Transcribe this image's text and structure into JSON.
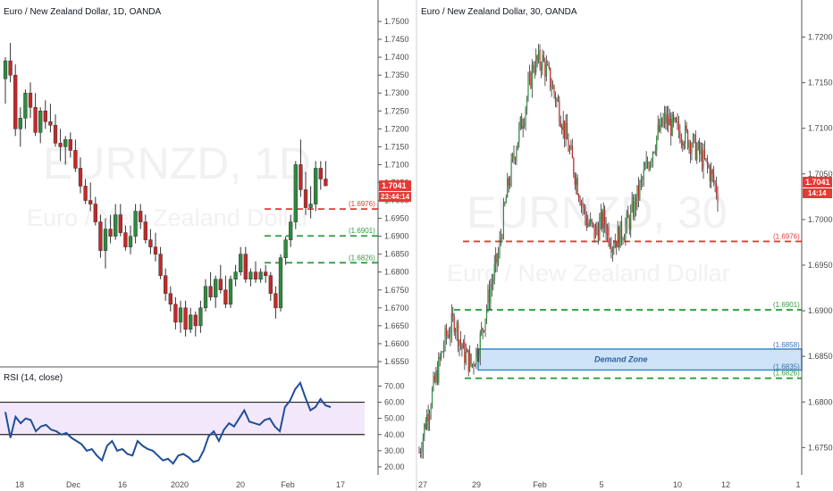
{
  "left_panel": {
    "title": "Euro / New Zealand Dollar, 1D, OANDA",
    "watermark_symbol": "EURNZD, 1D",
    "watermark_name": "Euro / New Zealand Dollar",
    "price_ticks": [
      "1.7500",
      "1.7450",
      "1.7400",
      "1.7350",
      "1.7300",
      "1.7250",
      "1.7200",
      "1.7150",
      "1.7100",
      "1.7050",
      "1.7000",
      "1.6950",
      "1.6900",
      "1.6850",
      "1.6800",
      "1.6750",
      "1.6700",
      "1.6650",
      "1.6600",
      "1.6550"
    ],
    "x_ticks": [
      "18",
      "Dec",
      "16",
      "2020",
      "20",
      "Feb",
      "17"
    ],
    "last_price": "1.7041",
    "countdown": "23:44:14",
    "levels": [
      {
        "label": "(1.6976)",
        "value": 1.6976,
        "color": "#e53935"
      },
      {
        "label": "(1.6901)",
        "value": 1.6901,
        "color": "#2e9e3e"
      },
      {
        "label": "(1.6826)",
        "value": 1.6826,
        "color": "#2e9e3e"
      }
    ],
    "rsi": {
      "label": "RSI (14, close)",
      "ticks": [
        "70.00",
        "60.00",
        "50.00",
        "40.00",
        "30.00",
        "20.00"
      ],
      "upper_band": 60,
      "lower_band": 40
    }
  },
  "right_panel": {
    "title": "Euro / New Zealand Dollar, 30, OANDA",
    "watermark_symbol": "EURNZD, 30",
    "watermark_name": "Euro / New Zealand Dollar",
    "price_ticks": [
      "1.7200",
      "1.7150",
      "1.7100",
      "1.7050",
      "1.7000",
      "1.6950",
      "1.6900",
      "1.6850",
      "1.6800",
      "1.6750"
    ],
    "x_ticks": [
      "27",
      "29",
      "Feb",
      "5",
      "10",
      "12",
      "1"
    ],
    "last_price": "1.7041",
    "countdown": "14:14",
    "levels": [
      {
        "label": "(1.6976)",
        "value": 1.6976,
        "color": "#e53935"
      },
      {
        "label": "(1.6901)",
        "value": 1.6901,
        "color": "#2e9e3e"
      },
      {
        "label": "(1.6826)",
        "value": 1.6826,
        "color": "#2e9e3e"
      }
    ],
    "demand_zone": {
      "label": "Demand Zone",
      "top_label": "(1.6858)",
      "bottom_label": "(1.6835)",
      "top": 1.6858,
      "bottom": 1.6835
    }
  },
  "colors": {
    "up": "#2e8b3e",
    "down": "#c62828",
    "rsi_line": "#1f4e99",
    "rsi_fill": "#f3e8fb",
    "tag_red": "#e53935"
  },
  "chart_data": [
    {
      "type": "candlestick",
      "title": "Euro / New Zealand Dollar, 1D, OANDA",
      "ylim": [
        1.655,
        1.752
      ],
      "series": [
        {
          "name": "EURNZD",
          "values": [
            [
              1.734,
              1.74,
              1.727,
              1.739
            ],
            [
              1.739,
              1.744,
              1.733,
              1.735
            ],
            [
              1.735,
              1.738,
              1.718,
              1.72
            ],
            [
              1.72,
              1.726,
              1.715,
              1.723
            ],
            [
              1.723,
              1.731,
              1.72,
              1.73
            ],
            [
              1.73,
              1.733,
              1.723,
              1.726
            ],
            [
              1.726,
              1.73,
              1.718,
              1.719
            ],
            [
              1.719,
              1.726,
              1.716,
              1.725
            ],
            [
              1.725,
              1.728,
              1.72,
              1.722
            ],
            [
              1.722,
              1.727,
              1.719,
              1.721
            ],
            [
              1.721,
              1.724,
              1.715,
              1.716
            ],
            [
              1.716,
              1.72,
              1.711,
              1.715
            ],
            [
              1.715,
              1.718,
              1.71,
              1.717
            ],
            [
              1.717,
              1.719,
              1.712,
              1.714
            ],
            [
              1.714,
              1.717,
              1.708,
              1.709
            ],
            [
              1.709,
              1.712,
              1.702,
              1.704
            ],
            [
              1.704,
              1.706,
              1.699,
              1.7
            ],
            [
              1.7,
              1.705,
              1.697,
              1.699
            ],
            [
              1.699,
              1.701,
              1.693,
              1.694
            ],
            [
              1.694,
              1.696,
              1.684,
              1.686
            ],
            [
              1.686,
              1.695,
              1.681,
              1.692
            ],
            [
              1.692,
              1.696,
              1.688,
              1.69
            ],
            [
              1.69,
              1.699,
              1.689,
              1.696
            ],
            [
              1.696,
              1.699,
              1.69,
              1.691
            ],
            [
              1.691,
              1.693,
              1.686,
              1.687
            ],
            [
              1.687,
              1.693,
              1.685,
              1.69
            ],
            [
              1.69,
              1.699,
              1.688,
              1.697
            ],
            [
              1.697,
              1.699,
              1.692,
              1.694
            ],
            [
              1.694,
              1.696,
              1.688,
              1.689
            ],
            [
              1.689,
              1.692,
              1.685,
              1.687
            ],
            [
              1.687,
              1.691,
              1.683,
              1.685
            ],
            [
              1.685,
              1.687,
              1.678,
              1.679
            ],
            [
              1.679,
              1.681,
              1.672,
              1.674
            ],
            [
              1.674,
              1.676,
              1.669,
              1.671
            ],
            [
              1.671,
              1.673,
              1.664,
              1.666
            ],
            [
              1.666,
              1.672,
              1.663,
              1.67
            ],
            [
              1.67,
              1.672,
              1.662,
              1.664
            ],
            [
              1.664,
              1.67,
              1.663,
              1.668
            ],
            [
              1.668,
              1.669,
              1.662,
              1.665
            ],
            [
              1.665,
              1.672,
              1.663,
              1.67
            ],
            [
              1.67,
              1.678,
              1.669,
              1.676
            ],
            [
              1.676,
              1.68,
              1.672,
              1.673
            ],
            [
              1.673,
              1.679,
              1.67,
              1.678
            ],
            [
              1.678,
              1.682,
              1.674,
              1.675
            ],
            [
              1.675,
              1.679,
              1.67,
              1.671
            ],
            [
              1.671,
              1.679,
              1.67,
              1.678
            ],
            [
              1.678,
              1.682,
              1.676,
              1.68
            ],
            [
              1.68,
              1.687,
              1.679,
              1.685
            ],
            [
              1.685,
              1.687,
              1.677,
              1.678
            ],
            [
              1.678,
              1.681,
              1.676,
              1.68
            ],
            [
              1.68,
              1.683,
              1.677,
              1.678
            ],
            [
              1.678,
              1.681,
              1.677,
              1.68
            ],
            [
              1.68,
              1.682,
              1.677,
              1.679
            ],
            [
              1.679,
              1.68,
              1.672,
              1.674
            ],
            [
              1.674,
              1.676,
              1.667,
              1.67
            ],
            [
              1.67,
              1.685,
              1.669,
              1.684
            ],
            [
              1.684,
              1.69,
              1.682,
              1.689
            ],
            [
              1.689,
              1.696,
              1.687,
              1.694
            ],
            [
              1.694,
              1.711,
              1.692,
              1.71
            ],
            [
              1.71,
              1.717,
              1.701,
              1.703
            ],
            [
              1.703,
              1.708,
              1.696,
              1.698
            ],
            [
              1.698,
              1.704,
              1.695,
              1.699
            ],
            [
              1.699,
              1.711,
              1.697,
              1.709
            ],
            [
              1.709,
              1.711,
              1.703,
              1.706
            ],
            [
              1.706,
              1.711,
              1.704,
              1.7041
            ]
          ]
        }
      ]
    },
    {
      "type": "line",
      "title": "RSI (14, close)",
      "ylim": [
        15,
        78
      ],
      "series": [
        {
          "name": "RSI (14, close)",
          "values": [
            54,
            38,
            51,
            47,
            50,
            49,
            42,
            45,
            46,
            43,
            42,
            40,
            41,
            38,
            36,
            34,
            30,
            31,
            27,
            24,
            33,
            36,
            30,
            31,
            28,
            27,
            36,
            33,
            31,
            30,
            27,
            24,
            25,
            22,
            27,
            28,
            26,
            23,
            24,
            30,
            39,
            42,
            36,
            43,
            47,
            45,
            50,
            55,
            48,
            47,
            46,
            49,
            50,
            45,
            42,
            57,
            61,
            68,
            72,
            63,
            55,
            57,
            62,
            58,
            57
          ]
        }
      ]
    },
    {
      "type": "line",
      "title": "Euro / New Zealand Dollar, 30, OANDA",
      "ylim": [
        1.672,
        1.7225
      ],
      "series": [
        {
          "name": "EURNZD",
          "values": [
            1.6745,
            1.679,
            1.683,
            1.687,
            1.689,
            1.6855,
            1.684,
            1.687,
            1.692,
            1.696,
            1.703,
            1.708,
            1.712,
            1.717,
            1.7175,
            1.715,
            1.712,
            1.708,
            1.704,
            1.7,
            1.6985,
            1.7,
            1.6975,
            1.6985,
            1.7,
            1.703,
            1.706,
            1.709,
            1.711,
            1.71,
            1.7095,
            1.7085,
            1.707,
            1.7055,
            1.703
          ]
        }
      ]
    }
  ]
}
